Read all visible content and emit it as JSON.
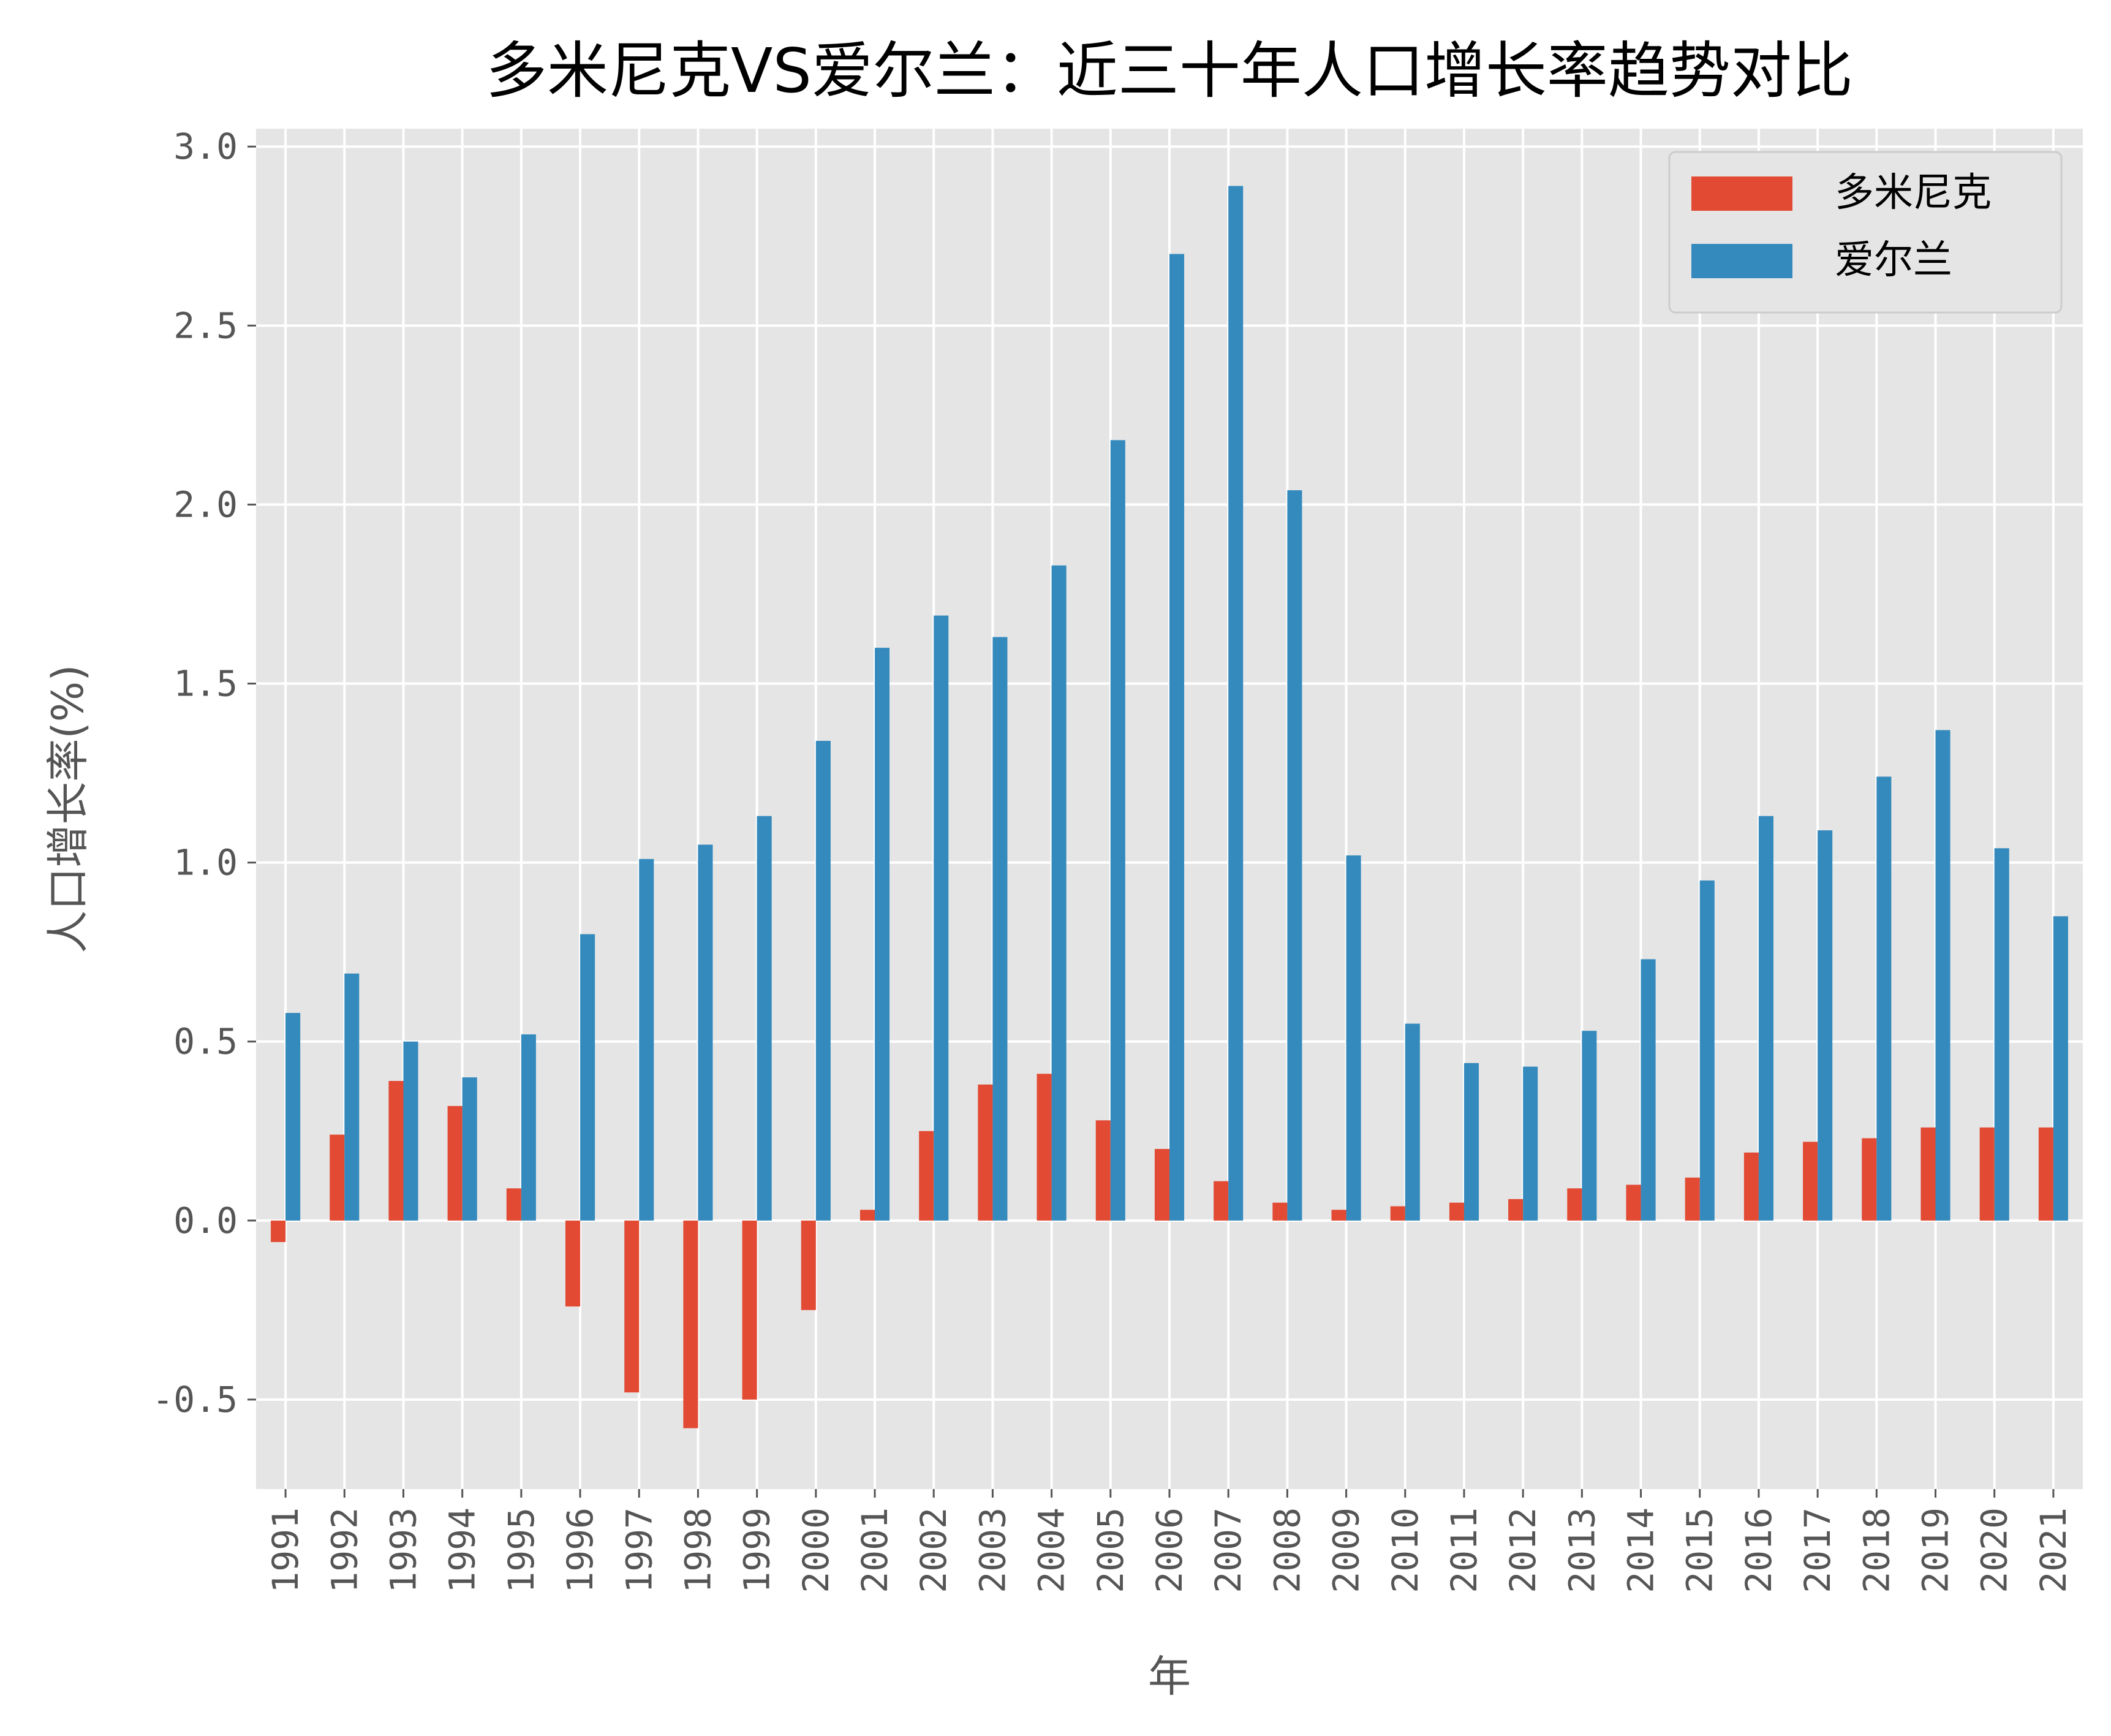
{
  "chart_data": {
    "type": "bar",
    "title": "多米尼克VS爱尔兰：近三十年人口增长率趋势对比",
    "xlabel": "年",
    "ylabel": "人口增长率(%)",
    "categories": [
      "1991",
      "1992",
      "1993",
      "1994",
      "1995",
      "1996",
      "1997",
      "1998",
      "1999",
      "2000",
      "2001",
      "2002",
      "2003",
      "2004",
      "2005",
      "2006",
      "2007",
      "2008",
      "2009",
      "2010",
      "2011",
      "2012",
      "2013",
      "2014",
      "2015",
      "2016",
      "2017",
      "2018",
      "2019",
      "2020",
      "2021"
    ],
    "series": [
      {
        "name": "多米尼克",
        "color": "#E24A33",
        "values": [
          -0.06,
          0.24,
          0.39,
          0.32,
          0.09,
          -0.24,
          -0.48,
          -0.58,
          -0.5,
          -0.25,
          0.03,
          0.25,
          0.38,
          0.41,
          0.28,
          0.2,
          0.11,
          0.05,
          0.03,
          0.04,
          0.05,
          0.06,
          0.09,
          0.1,
          0.12,
          0.19,
          0.22,
          0.23,
          0.26,
          0.26,
          0.26
        ]
      },
      {
        "name": "爱尔兰",
        "color": "#348ABD",
        "values": [
          0.58,
          0.69,
          0.5,
          0.4,
          0.52,
          0.8,
          1.01,
          1.05,
          1.13,
          1.34,
          1.6,
          1.69,
          1.63,
          1.83,
          2.18,
          2.7,
          2.89,
          2.04,
          1.02,
          0.55,
          0.44,
          0.43,
          0.53,
          0.73,
          0.95,
          1.13,
          1.09,
          1.24,
          1.37,
          1.04,
          0.85
        ]
      }
    ],
    "ylim": [
      -0.75,
      3.05
    ],
    "yticks": [
      -0.5,
      0.0,
      0.5,
      1.0,
      1.5,
      2.0,
      2.5,
      3.0
    ],
    "ytick_labels": [
      "-0.5",
      "0.0",
      "0.5",
      "1.0",
      "1.5",
      "2.0",
      "2.5",
      "3.0"
    ],
    "grid": true,
    "legend_position": "top-right",
    "background_color": "#E5E5E5",
    "grid_color": "#FFFFFF"
  }
}
